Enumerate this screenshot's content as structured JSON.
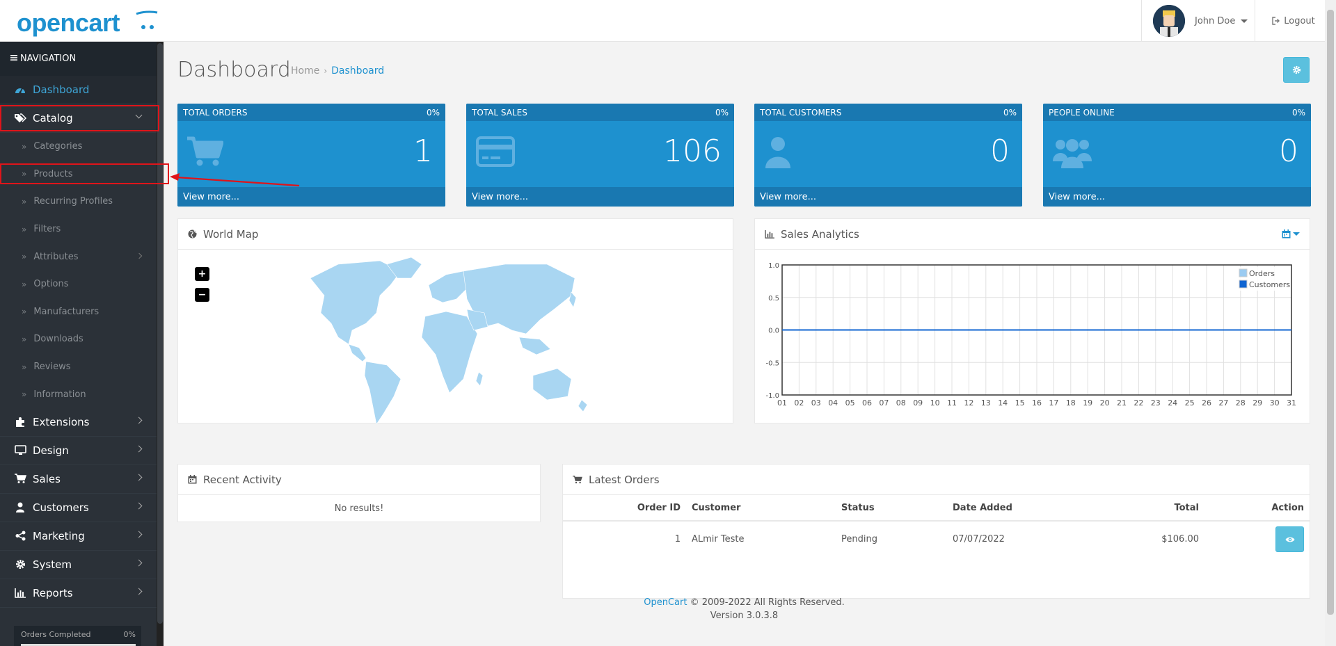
{
  "brand": {
    "logo_text": "opencart"
  },
  "header": {
    "user_name": "John Doe",
    "logout_label": "Logout"
  },
  "sidebar": {
    "title": "NAVIGATION",
    "items": [
      {
        "label": "Dashboard",
        "icon": "dashboard-icon",
        "active": true
      },
      {
        "label": "Catalog",
        "icon": "tags-icon",
        "expanded": true
      },
      {
        "label": "Extensions",
        "icon": "puzzle-icon"
      },
      {
        "label": "Design",
        "icon": "monitor-icon"
      },
      {
        "label": "Sales",
        "icon": "shopping-cart-icon"
      },
      {
        "label": "Customers",
        "icon": "user-icon"
      },
      {
        "label": "Marketing",
        "icon": "share-icon"
      },
      {
        "label": "System",
        "icon": "gear-icon"
      },
      {
        "label": "Reports",
        "icon": "bar-chart-icon"
      }
    ],
    "catalog_sub": [
      "Categories",
      "Products",
      "Recurring Profiles",
      "Filters",
      "Attributes",
      "Options",
      "Manufacturers",
      "Downloads",
      "Reviews",
      "Information"
    ],
    "progress": {
      "label": "Orders Completed",
      "value_text": "0%",
      "fraction": 0
    }
  },
  "page": {
    "title": "Dashboard",
    "breadcrumb": {
      "home": "Home",
      "sep": "›",
      "current": "Dashboard"
    }
  },
  "tiles": [
    {
      "title": "TOTAL ORDERS",
      "percent": "0%",
      "value": "1",
      "link": "View more...",
      "icon": "shopping-cart-icon"
    },
    {
      "title": "TOTAL SALES",
      "percent": "0%",
      "value": "106",
      "link": "View more...",
      "icon": "credit-card-icon"
    },
    {
      "title": "TOTAL CUSTOMERS",
      "percent": "0%",
      "value": "0",
      "link": "View more...",
      "icon": "user-icon"
    },
    {
      "title": "PEOPLE ONLINE",
      "percent": "0%",
      "value": "0",
      "link": "View more...",
      "icon": "users-icon"
    }
  ],
  "world_map": {
    "title": "World Map",
    "zoom_in": "+",
    "zoom_out": "−"
  },
  "sales_analytics": {
    "title": "Sales Analytics"
  },
  "chart_data": {
    "type": "line",
    "x": [
      "01",
      "02",
      "03",
      "04",
      "05",
      "06",
      "07",
      "08",
      "09",
      "10",
      "11",
      "12",
      "13",
      "14",
      "15",
      "16",
      "17",
      "18",
      "19",
      "20",
      "21",
      "22",
      "23",
      "24",
      "25",
      "26",
      "27",
      "28",
      "29",
      "30",
      "31"
    ],
    "series": [
      {
        "name": "Orders",
        "values": [
          0,
          0,
          0,
          0,
          0,
          0,
          0,
          0,
          0,
          0,
          0,
          0,
          0,
          0,
          0,
          0,
          0,
          0,
          0,
          0,
          0,
          0,
          0,
          0,
          0,
          0,
          0,
          0,
          0,
          0,
          0
        ],
        "color": "#9bcbf1"
      },
      {
        "name": "Customers",
        "values": [
          0,
          0,
          0,
          0,
          0,
          0,
          0,
          0,
          0,
          0,
          0,
          0,
          0,
          0,
          0,
          0,
          0,
          0,
          0,
          0,
          0,
          0,
          0,
          0,
          0,
          0,
          0,
          0,
          0,
          0,
          0
        ],
        "color": "#1065d2"
      }
    ],
    "yticks": [
      "1.0",
      "0.5",
      "0.0",
      "-0.5",
      "-1.0"
    ],
    "ylim": [
      -1,
      1
    ],
    "grid": true,
    "legend": "top-right"
  },
  "recent_activity": {
    "title": "Recent Activity",
    "empty": "No results!"
  },
  "latest_orders": {
    "title": "Latest Orders",
    "columns": {
      "order_id": "Order ID",
      "customer": "Customer",
      "status": "Status",
      "date": "Date Added",
      "total": "Total",
      "action": "Action"
    },
    "rows": [
      {
        "order_id": "1",
        "customer": "ALmir Teste",
        "status": "Pending",
        "date": "07/07/2022",
        "total": "$106.00"
      }
    ]
  },
  "footer": {
    "brand": "OpenCart",
    "copyright": "© 2009-2022 All Rights Reserved.",
    "version": "Version 3.0.3.8"
  },
  "colors": {
    "accent": "#1e91cf",
    "tile_dark": "#1978b1",
    "sidebar": "#2b3138",
    "highlight": "#e0141a"
  }
}
